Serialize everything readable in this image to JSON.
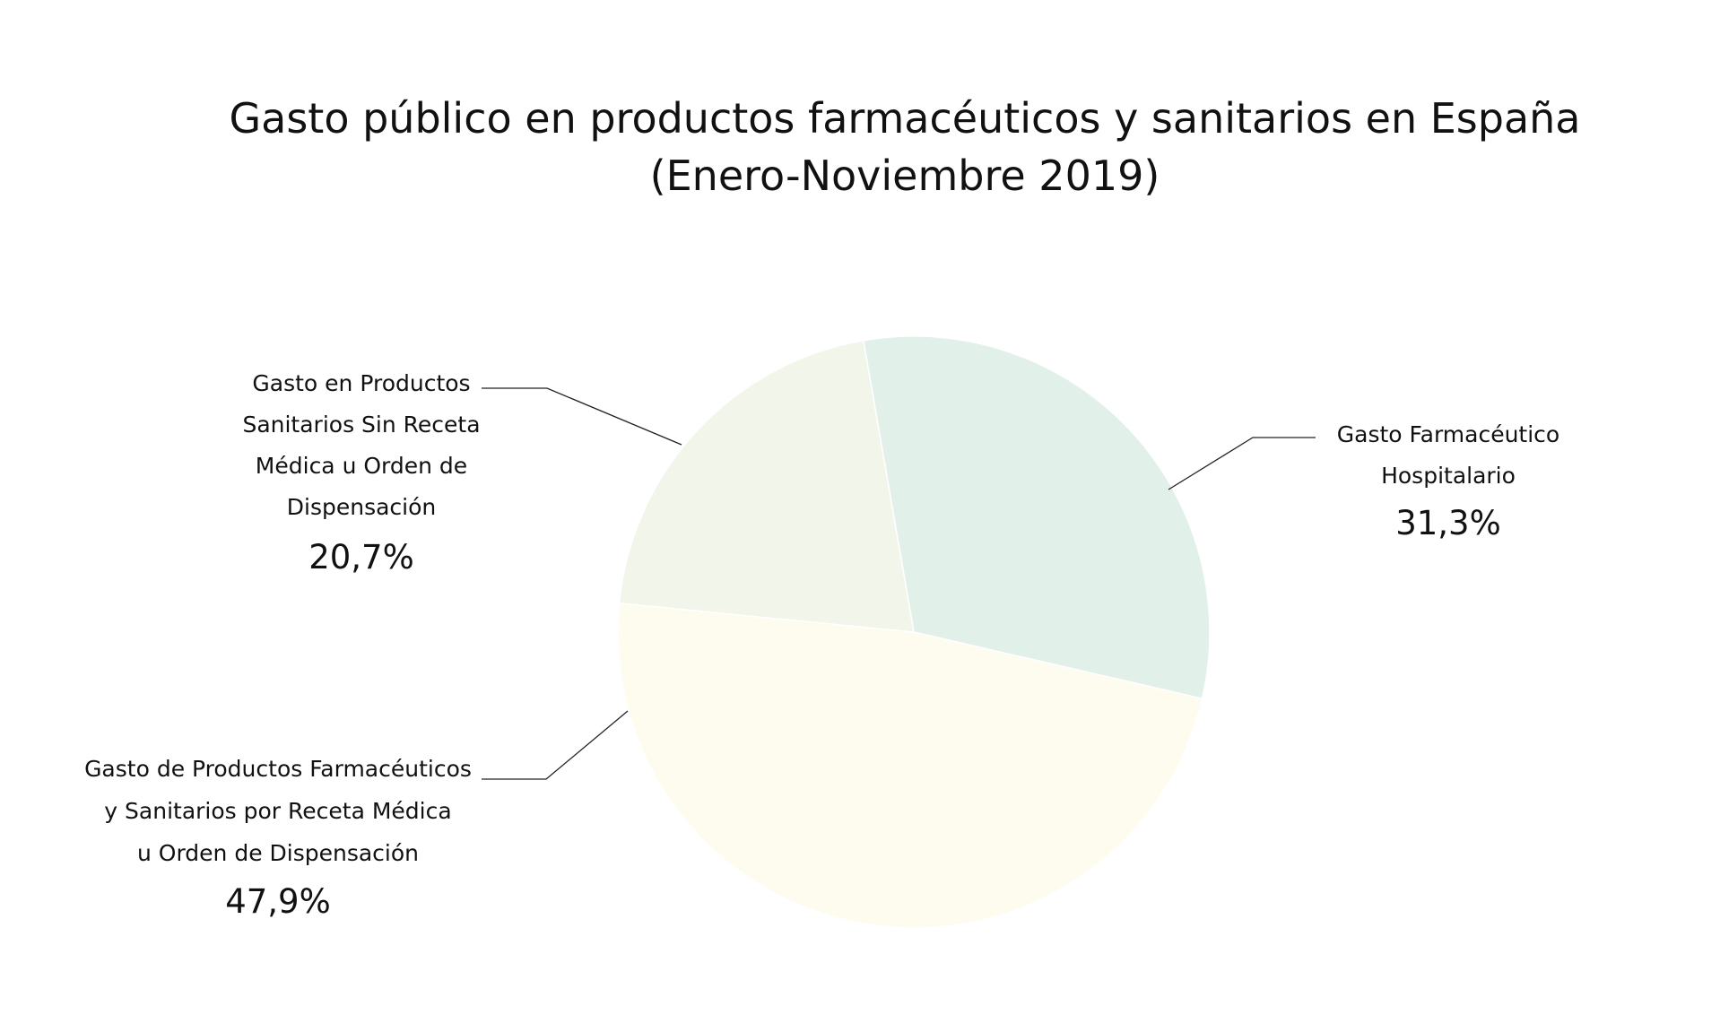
{
  "chart_data": {
    "type": "pie",
    "title_lines": [
      "Gasto público en productos farmacéuticos y sanitarios en España",
      "(Enero-Noviembre 2019)"
    ],
    "slices": [
      {
        "label_lines": [
          "Gasto Farmacéutico",
          "Hospitalario"
        ],
        "value_label": "31,3%",
        "value": 31.3,
        "color": "#e2f0ea"
      },
      {
        "label_lines": [
          "Gasto de Productos Farmacéuticos",
          "y Sanitarios por Receta Médica",
          "u Orden de Dispensación"
        ],
        "value_label": "47,9%",
        "value": 47.9,
        "color": "#fefcee"
      },
      {
        "label_lines": [
          "Gasto en Productos",
          "Sanitarios Sin Receta",
          "Médica u Orden de",
          "Dispensación"
        ],
        "value_label": "20,7%",
        "value": 20.7,
        "color": "#f1f5ea"
      }
    ]
  }
}
